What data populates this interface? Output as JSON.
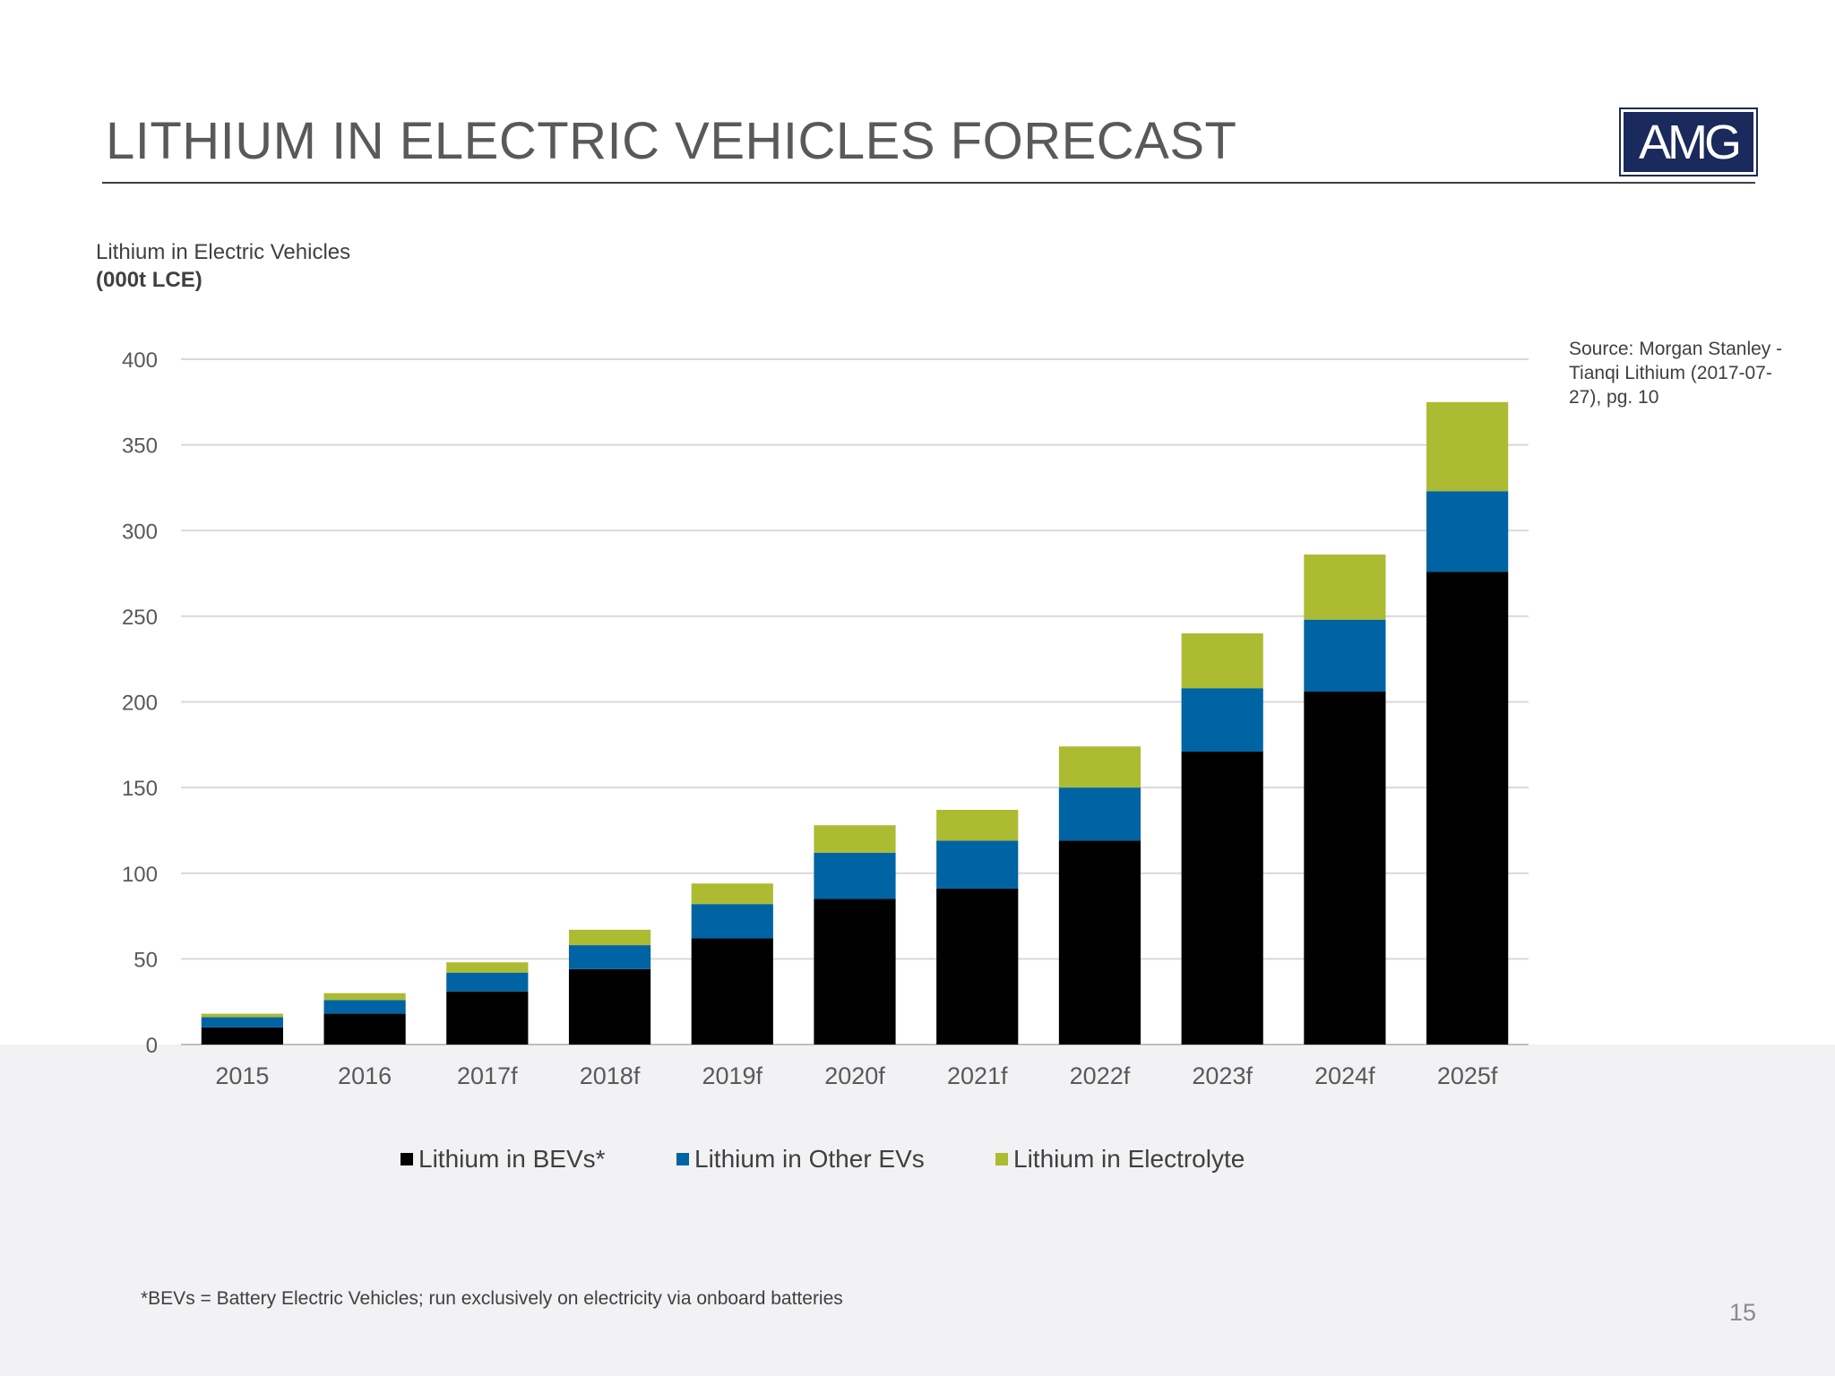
{
  "header": {
    "title": "LITHIUM IN ELECTRIC VEHICLES FORECAST",
    "logo_text": "AMG"
  },
  "chart_data": {
    "type": "bar",
    "stacked": true,
    "title": "Lithium in Electric Vehicles",
    "ylabel": "(000t LCE)",
    "categories": [
      "2015",
      "2016",
      "2017f",
      "2018f",
      "2019f",
      "2020f",
      "2021f",
      "2022f",
      "2023f",
      "2024f",
      "2025f"
    ],
    "series": [
      {
        "name": "Lithium in BEVs*",
        "color": "#000000",
        "values": [
          10,
          18,
          31,
          44,
          62,
          85,
          91,
          119,
          171,
          206,
          276
        ]
      },
      {
        "name": "Lithium in Other EVs",
        "color": "#0063a3",
        "values": [
          6,
          8,
          11,
          14,
          20,
          27,
          28,
          31,
          37,
          42,
          47
        ]
      },
      {
        "name": "Lithium in Electrolyte",
        "color": "#adbb33",
        "values": [
          2,
          4,
          6,
          9,
          12,
          16,
          18,
          24,
          32,
          38,
          52
        ]
      }
    ],
    "ylim": [
      0,
      400
    ],
    "yticks": [
      "0",
      "50",
      "100",
      "150",
      "200",
      "250",
      "300",
      "350",
      "400"
    ],
    "grid": true,
    "legend": "bottom"
  },
  "source": "Source: Morgan Stanley - Tianqi Lithium (2017-07-27), pg. 10",
  "footnote": "*BEVs = Battery Electric Vehicles; run exclusively on electricity via onboard batteries",
  "page_number": "15"
}
